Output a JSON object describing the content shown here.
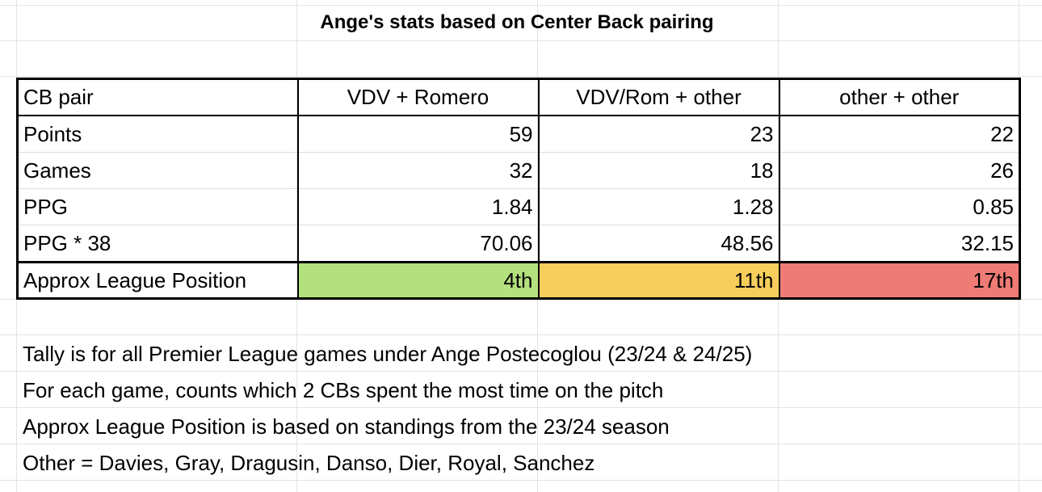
{
  "title": "Ange's stats based on Center Back pairing",
  "table": {
    "header": [
      "CB pair",
      "VDV + Romero",
      "VDV/Rom + other",
      "other + other"
    ],
    "rows": [
      {
        "label": "Points",
        "values": [
          "59",
          "23",
          "22"
        ]
      },
      {
        "label": "Games",
        "values": [
          "32",
          "18",
          "26"
        ]
      },
      {
        "label": "PPG",
        "values": [
          "1.84",
          "1.28",
          "0.85"
        ]
      },
      {
        "label": "PPG * 38",
        "values": [
          "70.06",
          "48.56",
          "32.15"
        ]
      }
    ],
    "position_row": {
      "label": "Approx League Position",
      "values": [
        "4th",
        "11th",
        "17th"
      ],
      "colors": [
        "#b4e07d",
        "#f7cd5c",
        "#ee7b76"
      ]
    }
  },
  "notes": [
    "Tally is for all Premier League games under Ange Postecoglou (23/24 & 24/25)",
    "For each game, counts which 2 CBs spent the most time on the pitch",
    "Approx League Position is based on standings from the 23/24 season",
    "Other = Davies, Gray, Dragusin, Danso, Dier, Royal, Sanchez"
  ]
}
